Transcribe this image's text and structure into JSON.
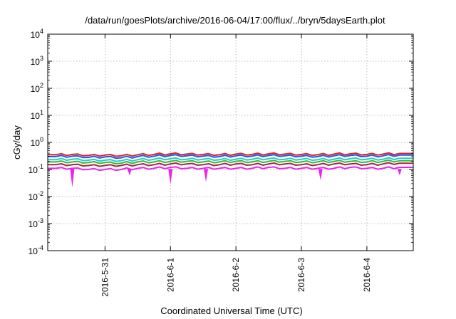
{
  "chart_data": {
    "type": "line",
    "title": "/data/run/goesPlots/archive/2016-06-04/17:00/flux/../bryn/5daysEarth.plot",
    "xlabel": "Coordinated Universal Time (UTC)",
    "ylabel": "cGy/day",
    "x_range": [
      "2016-05-30T03:00",
      "2016-06-04T17:00"
    ],
    "x_ticks": [
      {
        "value": "2016-05-31T00:00",
        "label": "2016-5-31"
      },
      {
        "value": "2016-06-01T00:00",
        "label": "2016-6-1"
      },
      {
        "value": "2016-06-02T00:00",
        "label": "2016-6-2"
      },
      {
        "value": "2016-06-03T00:00",
        "label": "2016-6-3"
      },
      {
        "value": "2016-06-04T00:00",
        "label": "2016-6-4"
      }
    ],
    "y_scale": "log",
    "ylim": [
      0.0001,
      10000
    ],
    "y_ticks": [
      {
        "value": 10000,
        "base": "10",
        "exp": "4"
      },
      {
        "value": 1000,
        "base": "10",
        "exp": "3"
      },
      {
        "value": 100,
        "base": "10",
        "exp": "2"
      },
      {
        "value": 10,
        "base": "10",
        "exp": "1"
      },
      {
        "value": 1,
        "base": "10",
        "exp": "0"
      },
      {
        "value": 0.1,
        "base": "10",
        "exp": "-1"
      },
      {
        "value": 0.01,
        "base": "10",
        "exp": "-2"
      },
      {
        "value": 0.001,
        "base": "10",
        "exp": "-3"
      },
      {
        "value": 0.0001,
        "base": "10",
        "exp": "-4"
      }
    ],
    "grid": true,
    "x": [
      "2016-05-30T06:00",
      "2016-05-30T12:00",
      "2016-05-30T18:00",
      "2016-05-31T00:00",
      "2016-05-31T06:00",
      "2016-05-31T12:00",
      "2016-05-31T18:00",
      "2016-06-01T00:00",
      "2016-06-01T06:00",
      "2016-06-01T12:00",
      "2016-06-01T18:00",
      "2016-06-02T00:00",
      "2016-06-02T06:00",
      "2016-06-02T12:00",
      "2016-06-02T18:00",
      "2016-06-03T00:00",
      "2016-06-03T06:00",
      "2016-06-03T12:00",
      "2016-06-03T18:00",
      "2016-06-04T00:00",
      "2016-06-04T06:00",
      "2016-06-04T12:00"
    ],
    "series": [
      {
        "color": "#dd2222",
        "values": [
          0.35,
          0.36,
          0.33,
          0.34,
          0.32,
          0.35,
          0.36,
          0.38,
          0.37,
          0.36,
          0.35,
          0.37,
          0.36,
          0.38,
          0.37,
          0.36,
          0.35,
          0.37,
          0.38,
          0.36,
          0.37,
          0.39
        ]
      },
      {
        "color": "#2255ee",
        "values": [
          0.3,
          0.31,
          0.28,
          0.29,
          0.27,
          0.3,
          0.31,
          0.33,
          0.32,
          0.31,
          0.3,
          0.32,
          0.31,
          0.33,
          0.32,
          0.31,
          0.3,
          0.32,
          0.33,
          0.31,
          0.32,
          0.34
        ]
      },
      {
        "color": "#22cccc",
        "values": [
          0.23,
          0.24,
          0.22,
          0.22,
          0.21,
          0.23,
          0.24,
          0.25,
          0.24,
          0.24,
          0.23,
          0.24,
          0.24,
          0.25,
          0.24,
          0.24,
          0.23,
          0.24,
          0.25,
          0.24,
          0.24,
          0.26
        ]
      },
      {
        "color": "#33bb33",
        "values": [
          0.19,
          0.19,
          0.18,
          0.18,
          0.17,
          0.19,
          0.19,
          0.2,
          0.2,
          0.19,
          0.19,
          0.2,
          0.19,
          0.2,
          0.2,
          0.19,
          0.19,
          0.2,
          0.2,
          0.19,
          0.2,
          0.21
        ]
      },
      {
        "color": "#aa2244",
        "values": [
          0.15,
          0.15,
          0.14,
          0.14,
          0.14,
          0.15,
          0.15,
          0.16,
          0.16,
          0.15,
          0.15,
          0.16,
          0.15,
          0.16,
          0.16,
          0.15,
          0.15,
          0.16,
          0.16,
          0.15,
          0.16,
          0.17
        ]
      },
      {
        "color": "#ee22ee",
        "values": [
          0.11,
          0.11,
          0.1,
          0.1,
          0.1,
          0.11,
          0.11,
          0.12,
          0.11,
          0.11,
          0.11,
          0.11,
          0.11,
          0.12,
          0.11,
          0.11,
          0.11,
          0.11,
          0.12,
          0.11,
          0.11,
          0.12
        ]
      }
    ],
    "minima": [
      {
        "color": "#ee22ee",
        "points": [
          [
            "2016-05-30T12:00",
            0.022
          ],
          [
            "2016-06-01T00:00",
            0.028
          ],
          [
            "2016-06-01T13:00",
            0.035
          ],
          [
            "2016-06-03T07:00",
            0.04
          ],
          [
            "2016-06-04T12:00",
            0.06
          ],
          [
            "2016-05-31T09:00",
            0.06
          ]
        ]
      }
    ]
  }
}
